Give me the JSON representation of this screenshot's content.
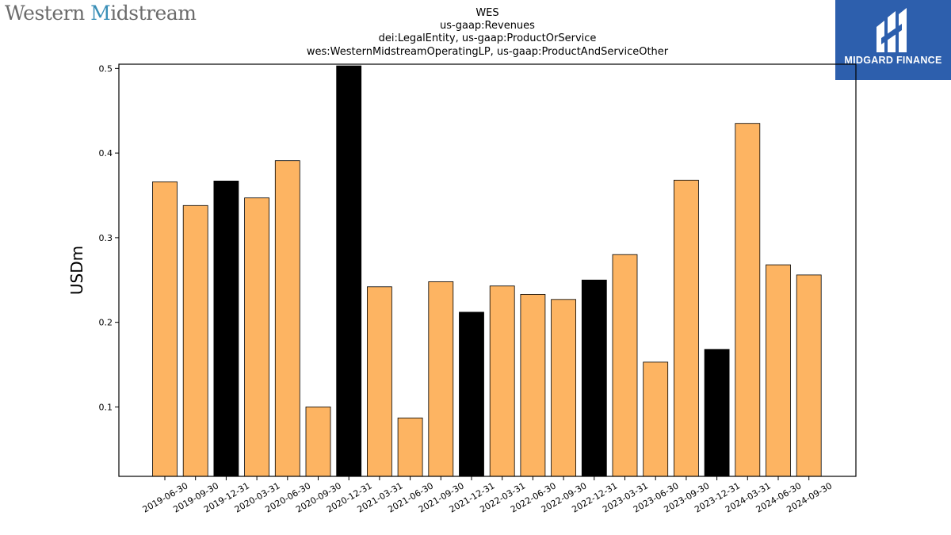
{
  "logo": {
    "text_main": "Western ",
    "text_accent": "M",
    "text_rest": "idstream"
  },
  "brand": {
    "name": "MIDGARD FINANCE",
    "icon": "midgard-logo-icon",
    "color": "#2d5fad"
  },
  "chart_data": {
    "type": "bar",
    "title_lines": [
      "WES",
      "us-gaap:Revenues",
      "dei:LegalEntity, us-gaap:ProductOrService",
      "wes:WesternMidstreamOperatingLP, us-gaap:ProductAndServiceOther"
    ],
    "ylabel": "USDm",
    "xlabel": "",
    "ylim": [
      0.018,
      0.505
    ],
    "yticks": [
      0.1,
      0.2,
      0.3,
      0.4,
      0.5
    ],
    "grid": false,
    "legend": "none",
    "colors": {
      "quarter": "#fdb462",
      "annual": "#000000",
      "edge": "#000000"
    },
    "categories": [
      "2019-06-30",
      "2019-09-30",
      "2019-12-31",
      "2020-03-31",
      "2020-06-30",
      "2020-09-30",
      "2020-12-31",
      "2021-03-31",
      "2021-06-30",
      "2021-09-30",
      "2021-12-31",
      "2022-03-31",
      "2022-06-30",
      "2022-09-30",
      "2022-12-31",
      "2023-03-31",
      "2023-06-30",
      "2023-09-30",
      "2023-12-31",
      "2024-03-31",
      "2024-06-30",
      "2024-09-30"
    ],
    "values": [
      0.366,
      0.338,
      0.367,
      0.347,
      0.391,
      0.1,
      0.503,
      0.242,
      0.087,
      0.248,
      0.212,
      0.243,
      0.233,
      0.227,
      0.25,
      0.28,
      0.153,
      0.368,
      0.168,
      0.435,
      0.268,
      0.256
    ],
    "highlight": [
      false,
      false,
      true,
      false,
      false,
      false,
      true,
      false,
      false,
      false,
      true,
      false,
      false,
      false,
      true,
      false,
      false,
      false,
      true,
      false,
      false,
      false
    ]
  }
}
